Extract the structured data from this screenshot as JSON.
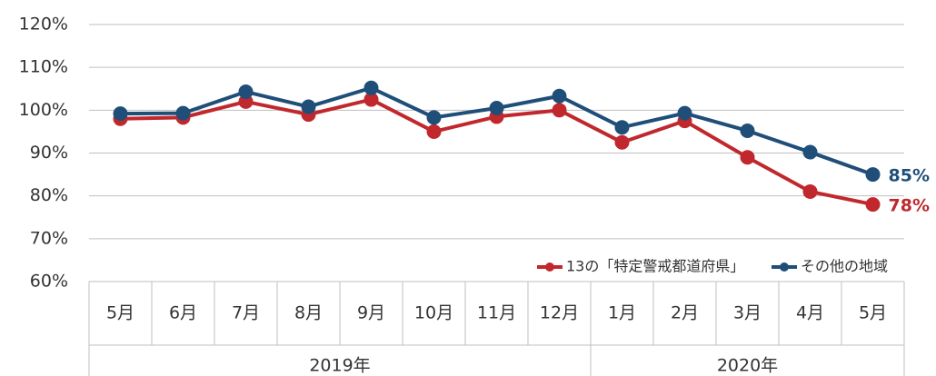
{
  "chart_data": {
    "type": "line",
    "categories": [
      "5月",
      "6月",
      "7月",
      "8月",
      "9月",
      "10月",
      "11月",
      "12月",
      "1月",
      "2月",
      "3月",
      "4月",
      "5月"
    ],
    "groups": [
      {
        "label": "2019年",
        "count": 8
      },
      {
        "label": "2020年",
        "count": 5
      }
    ],
    "series": [
      {
        "name": "13の「特定警戒都道府県」",
        "color": "#c0282d",
        "values": [
          98,
          98.3,
          102,
          99,
          102.5,
          95,
          98.5,
          100,
          92.5,
          97.5,
          89,
          81,
          78
        ],
        "value_labels": [
          null,
          null,
          null,
          null,
          null,
          null,
          null,
          null,
          null,
          null,
          null,
          null,
          "78%"
        ]
      },
      {
        "name": "その他の地域",
        "color": "#1f4e79",
        "values": [
          99.2,
          99.3,
          104.3,
          100.8,
          105.2,
          98.3,
          100.5,
          103.3,
          96,
          99.3,
          95.2,
          90.2,
          85
        ],
        "value_labels": [
          null,
          null,
          null,
          null,
          null,
          null,
          null,
          null,
          null,
          null,
          null,
          null,
          "85%"
        ]
      }
    ],
    "ylim": [
      60,
      120
    ],
    "yticks": [
      {
        "value": 60,
        "label": "60%"
      },
      {
        "value": 70,
        "label": "70%"
      },
      {
        "value": 80,
        "label": "80%"
      },
      {
        "value": 90,
        "label": "90%"
      },
      {
        "value": 100,
        "label": "100%"
      },
      {
        "value": 110,
        "label": "110%"
      },
      {
        "value": 120,
        "label": "120%"
      }
    ],
    "grid": true,
    "legend": "bottom-right"
  }
}
